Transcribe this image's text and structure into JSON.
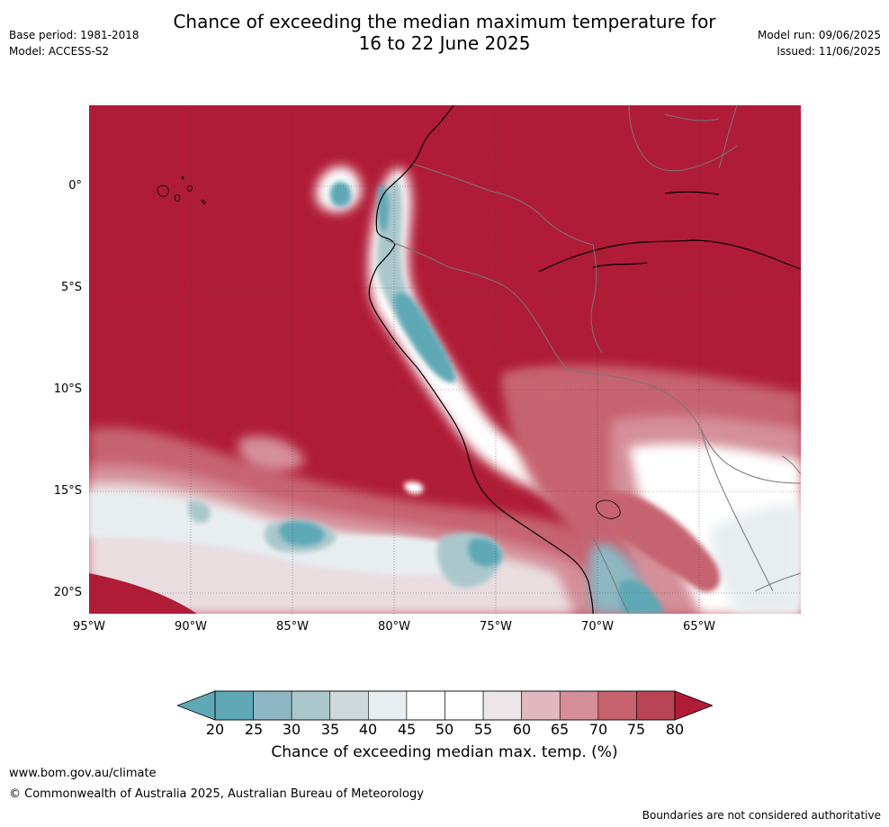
{
  "header": {
    "title_line1": "Chance of exceeding the median maximum temperature for",
    "title_line2": "16 to 22 June 2025",
    "base_period": "Base period: 1981-2018",
    "model": "Model: ACCESS-S2",
    "model_run": "Model run: 09/06/2025",
    "issued": "Issued: 11/06/2025"
  },
  "map": {
    "region": "Western South America and eastern Pacific",
    "lat_labels": [
      "0°",
      "5°S",
      "10°S",
      "15°S",
      "20°S"
    ],
    "lon_labels": [
      "95°W",
      "90°W",
      "85°W",
      "80°W",
      "75°W",
      "70°W",
      "65°W"
    ],
    "lon_range": [
      -95,
      -60
    ],
    "lat_range": [
      -21,
      4
    ],
    "gridlines": true
  },
  "colorbar": {
    "ticks": [
      "20",
      "25",
      "30",
      "35",
      "40",
      "45",
      "50",
      "55",
      "60",
      "65",
      "70",
      "75",
      "80"
    ],
    "label": "Chance of exceeding median max. temp. (%)",
    "colors": [
      "#5fa8b6",
      "#8db7c3",
      "#aac8cc",
      "#cfd9db",
      "#e8eef0",
      "#ffffff",
      "#ffffff",
      "#ece6e8",
      "#e1b8bf",
      "#d48f99",
      "#c6636f",
      "#b94453",
      "#b01c37"
    ]
  },
  "footer": {
    "url": "www.bom.gov.au/climate",
    "copyright": "© Commonwealth of Australia 2025, Australian Bureau of Meteorology",
    "disclaimer": "Boundaries are not considered authoritative"
  }
}
